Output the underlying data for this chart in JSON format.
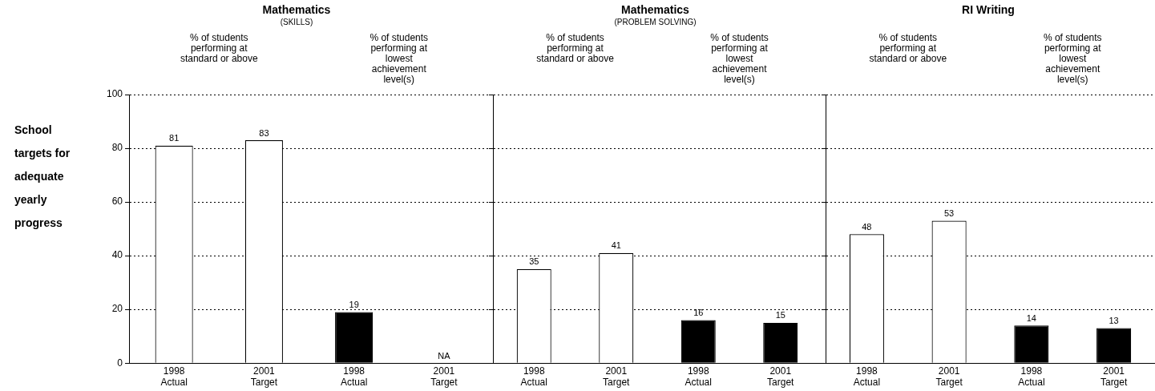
{
  "chart_data": [
    {
      "type": "bar",
      "title": "Mathematics",
      "subtitle": "(SKILLS)",
      "ylabel": "School targets for adequate yearly progress",
      "categories": [
        "1998 Actual",
        "2001 Target",
        "1998 Actual",
        "2001 Target"
      ],
      "values": [
        81,
        83,
        19,
        null
      ],
      "colors": [
        "#ffffff",
        "#ffffff",
        "#000000",
        "#000000"
      ],
      "value_labels": [
        "81",
        "83",
        "19",
        "NA"
      ],
      "annotations": [
        "% of students performing at standard or above",
        "% of students performing at lowest achievement level(s)"
      ],
      "ylim": [
        0,
        100
      ],
      "yticks": [
        0,
        20,
        40,
        60,
        80,
        100
      ],
      "grid": "y"
    },
    {
      "type": "bar",
      "title": "Mathematics",
      "subtitle": "(PROBLEM SOLVING)",
      "categories": [
        "1998 Actual",
        "2001 Target",
        "1998 Actual",
        "2001 Target"
      ],
      "values": [
        35,
        41,
        16,
        15
      ],
      "colors": [
        "#ffffff",
        "#ffffff",
        "#000000",
        "#000000"
      ],
      "value_labels": [
        "35",
        "41",
        "16",
        "15"
      ],
      "annotations": [
        "% of students performing at standard or above",
        "% of students performing at lowest achievement level(s)"
      ],
      "ylim": [
        0,
        100
      ],
      "yticks": [
        0,
        20,
        40,
        60,
        80,
        100
      ],
      "grid": "y",
      "tick_labels": "x"
    },
    {
      "type": "bar",
      "title": "RI Writing",
      "categories": [
        "1998 Actual",
        "2001 Target",
        "1998 Actual",
        "2001 Target"
      ],
      "values": [
        48,
        53,
        14,
        13
      ],
      "colors": [
        "#ffffff",
        "#ffffff",
        "#000000",
        "#000000"
      ],
      "value_labels": [
        "48",
        "53",
        "14",
        "13"
      ],
      "annotations": [
        "% of students performing at standard or above",
        "% of students performing at lowest achievement level(s)"
      ],
      "ylim": [
        0,
        100
      ],
      "yticks": [
        0,
        20,
        40,
        60,
        80,
        100
      ],
      "grid": "y",
      "tick_labels": "x"
    }
  ]
}
